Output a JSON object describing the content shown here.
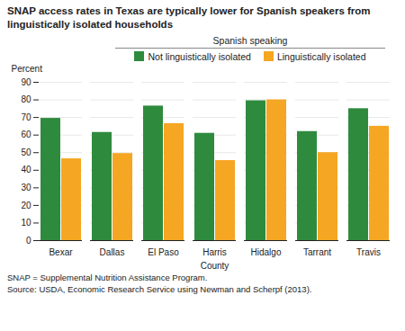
{
  "chart_data": {
    "type": "bar",
    "title": "SNAP access rates in Texas are typically lower for Spanish speakers from linguistically isolated households",
    "x_label": "County",
    "y_label": "Percent",
    "categories": [
      "Bexar",
      "Dallas",
      "El Paso",
      "Harris",
      "Hidalgo",
      "Tarrant",
      "Travis"
    ],
    "series": [
      {
        "name": "Not linguistically isolated",
        "color": "#2e8b3e",
        "values": [
          69.5,
          61.5,
          76.5,
          61.0,
          79.5,
          62.0,
          75.0
        ]
      },
      {
        "name": "Linguistically isolated",
        "color": "#f5a623",
        "values": [
          46.5,
          49.5,
          66.5,
          45.5,
          80.0,
          50.0,
          65.0
        ]
      }
    ],
    "legend_title": "Spanish speaking",
    "legend": "top",
    "ylim": [
      0,
      90
    ],
    "yticks": [
      0,
      10,
      20,
      30,
      40,
      50,
      60,
      70,
      80,
      90
    ],
    "grid": true,
    "annotations": [
      "SNAP = Supplemental Nutrition Assistance Program.",
      "Source: USDA, Economic Research Service using Newman and Scherpf (2013)."
    ]
  }
}
